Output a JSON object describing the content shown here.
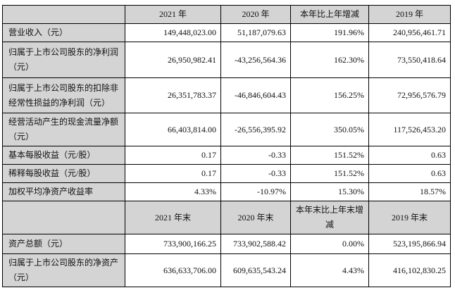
{
  "table": {
    "header_annual": {
      "corner": "",
      "cols": [
        "2021 年",
        "2020 年",
        "本年比上年增减",
        "2019 年"
      ]
    },
    "annual_rows": [
      {
        "label": "营业收入（元）",
        "values": [
          "149,448,023.00",
          "51,187,079.63",
          "191.96%",
          "240,956,461.71"
        ]
      },
      {
        "label": "归属于上市公司股东的净利润（元）",
        "values": [
          "26,950,982.41",
          "-43,256,564.36",
          "162.30%",
          "73,550,418.64"
        ]
      },
      {
        "label": "归属于上市公司股东的扣除非经常性损益的净利润（元）",
        "values": [
          "26,351,783.37",
          "-46,846,604.43",
          "156.25%",
          "72,956,576.79"
        ]
      },
      {
        "label": "经营活动产生的现金流量净额（元）",
        "values": [
          "66,403,814.00",
          "-26,556,395.92",
          "350.05%",
          "117,526,453.20"
        ]
      },
      {
        "label": "基本每股收益（元/股）",
        "values": [
          "0.17",
          "-0.33",
          "151.52%",
          "0.63"
        ]
      },
      {
        "label": "稀释每股收益（元/股）",
        "values": [
          "0.17",
          "-0.33",
          "151.52%",
          "0.63"
        ]
      },
      {
        "label": "加权平均净资产收益率",
        "values": [
          "4.33%",
          "-10.97%",
          "15.30%",
          "18.57%"
        ]
      }
    ],
    "header_yearend": {
      "corner": "",
      "cols": [
        "2021 年末",
        "2020 年末",
        "本年末比上年末增减",
        "2019 年末"
      ]
    },
    "yearend_rows": [
      {
        "label": "资产总额（元）",
        "values": [
          "733,900,166.25",
          "733,902,588.42",
          "0.00%",
          "523,195,866.94"
        ]
      },
      {
        "label": "归属于上市公司股东的净资产（元）",
        "values": [
          "636,633,706.00",
          "609,635,543.24",
          "4.43%",
          "416,102,830.25"
        ]
      }
    ]
  },
  "colors": {
    "header_bg": "#d4d4d4",
    "label_bg": "#d4d4d4",
    "cell_bg": "#ffffff",
    "border": "#000000",
    "text": "#111111"
  }
}
